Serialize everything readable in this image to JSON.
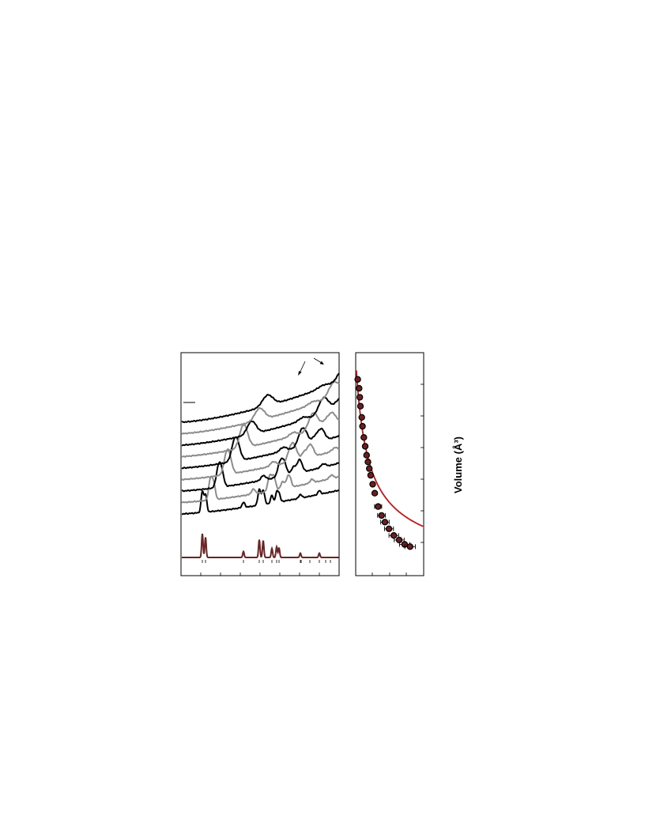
{
  "chart_data": [
    {
      "type": "line",
      "title": "",
      "xlabel": "",
      "ylabel": "",
      "n_patterns": 9,
      "pattern_colors": [
        "#000000",
        "#8c8c8c",
        "#000000",
        "#8c8c8c",
        "#000000",
        "#8c8c8c",
        "#000000",
        "#8c8c8c",
        "#000000"
      ],
      "reference_pattern": {
        "color": "#6b2424"
      },
      "grid": false,
      "legend": "none"
    },
    {
      "type": "scatter",
      "title": "",
      "xlabel": "",
      "ylabel": "Volume (Å³)",
      "series": [
        {
          "marker": "circle",
          "color": "#000000",
          "fill": "#6b1f1f",
          "points": [
            [
              0.03,
              0.88
            ],
            [
              0.05,
              0.84
            ],
            [
              0.06,
              0.8
            ],
            [
              0.07,
              0.76
            ],
            [
              0.09,
              0.71
            ],
            [
              0.1,
              0.67
            ],
            [
              0.12,
              0.62
            ],
            [
              0.14,
              0.58
            ],
            [
              0.16,
              0.54
            ],
            [
              0.18,
              0.51
            ],
            [
              0.2,
              0.48
            ],
            [
              0.22,
              0.45
            ],
            [
              0.25,
              0.41
            ],
            [
              0.28,
              0.37
            ],
            [
              0.33,
              0.31
            ],
            [
              0.38,
              0.27
            ],
            [
              0.43,
              0.24
            ],
            [
              0.49,
              0.21
            ],
            [
              0.56,
              0.18
            ],
            [
              0.64,
              0.16
            ],
            [
              0.72,
              0.14
            ],
            [
              0.8,
              0.13
            ]
          ]
        }
      ],
      "fit_color": "#c01818",
      "grid": false,
      "legend": "none"
    }
  ]
}
